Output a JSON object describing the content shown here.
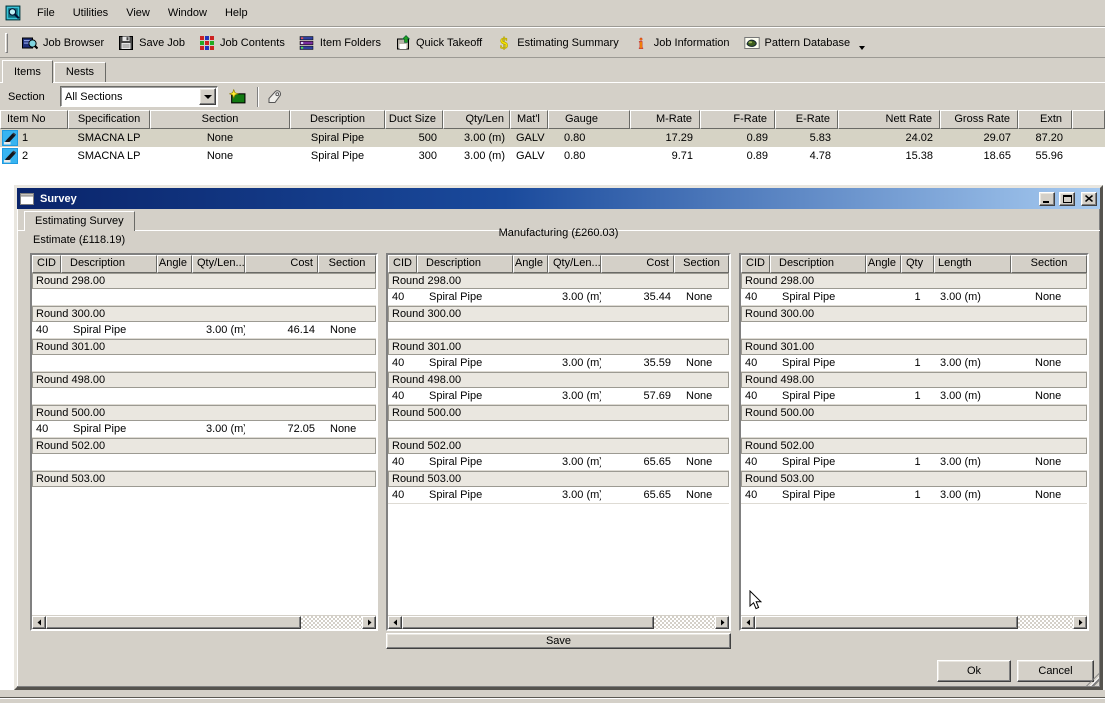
{
  "app": {
    "menu": [
      "File",
      "Utilities",
      "View",
      "Window",
      "Help"
    ]
  },
  "toolbar": [
    {
      "label": "Job Browser",
      "icon": "job-browser-icon"
    },
    {
      "label": "Save Job",
      "icon": "save-job-icon"
    },
    {
      "label": "Job Contents",
      "icon": "job-contents-icon"
    },
    {
      "label": "Item Folders",
      "icon": "item-folders-icon"
    },
    {
      "label": "Quick Takeoff",
      "icon": "quick-takeoff-icon"
    },
    {
      "label": "Estimating Summary",
      "icon": "estimating-summary-icon"
    },
    {
      "label": "Job Information",
      "icon": "job-information-icon"
    },
    {
      "label": "Pattern Database",
      "icon": "pattern-database-icon"
    }
  ],
  "tabs": [
    {
      "label": "Items",
      "active": true
    },
    {
      "label": "Nests",
      "active": false
    }
  ],
  "section_bar": {
    "label": "Section",
    "value": "All Sections"
  },
  "items_table": {
    "columns": [
      "Item No",
      "Specification",
      "Section",
      "Description",
      "Duct Size",
      "Qty/Len",
      "Mat'l",
      "Gauge",
      "M-Rate",
      "F-Rate",
      "E-Rate",
      "Nett Rate",
      "Gross Rate",
      "Extn"
    ],
    "rows": [
      {
        "selected": true,
        "cells": [
          "1",
          "SMACNA LP",
          "None",
          "Spiral Pipe",
          "500",
          "3.00 (m)",
          "GALV",
          "0.80",
          "17.29",
          "0.89",
          "5.83",
          "24.02",
          "29.07",
          "87.20"
        ]
      },
      {
        "selected": false,
        "cells": [
          "2",
          "SMACNA LP",
          "None",
          "Spiral Pipe",
          "300",
          "3.00 (m)",
          "GALV",
          "0.80",
          "9.71",
          "0.89",
          "4.78",
          "15.38",
          "18.65",
          "55.96"
        ]
      }
    ]
  },
  "dialog": {
    "title": "Survey",
    "tab_label": "Estimating Survey",
    "estimate_label": "Estimate (£118.19)",
    "manufacturing_label": "Manufacturing (£260.03)",
    "save_label": "Save",
    "ok_label": "Ok",
    "cancel_label": "Cancel",
    "panels": [
      {
        "name": "estimate",
        "columns": [
          "CID",
          "Description",
          "Angle",
          "Qty/Len...",
          "Cost",
          "Section"
        ],
        "rows": [
          {
            "type": "group",
            "label": "Round 298.00"
          },
          {
            "type": "empty"
          },
          {
            "type": "group",
            "label": "Round 300.00"
          },
          {
            "type": "item",
            "cells": [
              "40",
              "Spiral Pipe",
              "",
              "3.00 (m)",
              "46.14",
              "None"
            ]
          },
          {
            "type": "group",
            "label": "Round 301.00"
          },
          {
            "type": "empty"
          },
          {
            "type": "group",
            "label": "Round 498.00"
          },
          {
            "type": "empty"
          },
          {
            "type": "group",
            "label": "Round 500.00"
          },
          {
            "type": "item",
            "cells": [
              "40",
              "Spiral Pipe",
              "",
              "3.00 (m)",
              "72.05",
              "None"
            ]
          },
          {
            "type": "group",
            "label": "Round 502.00"
          },
          {
            "type": "empty"
          },
          {
            "type": "group",
            "label": "Round 503.00"
          }
        ]
      },
      {
        "name": "manufacturing",
        "columns": [
          "CID",
          "Description",
          "Angle",
          "Qty/Len...",
          "Cost",
          "Section"
        ],
        "rows": [
          {
            "type": "group",
            "label": "Round 298.00"
          },
          {
            "type": "item",
            "cells": [
              "40",
              "Spiral Pipe",
              "",
              "3.00 (m)",
              "35.44",
              "None"
            ]
          },
          {
            "type": "group",
            "label": "Round 300.00"
          },
          {
            "type": "empty"
          },
          {
            "type": "group",
            "label": "Round 301.00"
          },
          {
            "type": "item",
            "cells": [
              "40",
              "Spiral Pipe",
              "",
              "3.00 (m)",
              "35.59",
              "None"
            ]
          },
          {
            "type": "group",
            "label": "Round 498.00"
          },
          {
            "type": "item",
            "cells": [
              "40",
              "Spiral Pipe",
              "",
              "3.00 (m)",
              "57.69",
              "None"
            ]
          },
          {
            "type": "group",
            "label": "Round 500.00"
          },
          {
            "type": "empty"
          },
          {
            "type": "group",
            "label": "Round 502.00"
          },
          {
            "type": "item",
            "cells": [
              "40",
              "Spiral Pipe",
              "",
              "3.00 (m)",
              "65.65",
              "None"
            ]
          },
          {
            "type": "group",
            "label": "Round 503.00"
          },
          {
            "type": "item",
            "cells": [
              "40",
              "Spiral Pipe",
              "",
              "3.00 (m)",
              "65.65",
              "None"
            ]
          }
        ]
      },
      {
        "name": "quantities",
        "columns": [
          "CID",
          "Description",
          "Angle",
          "Qty",
          "Length",
          "Section"
        ],
        "rows": [
          {
            "type": "group",
            "label": "Round 298.00"
          },
          {
            "type": "item",
            "cells": [
              "40",
              "Spiral Pipe",
              "",
              "1",
              "3.00 (m)",
              "None"
            ]
          },
          {
            "type": "group",
            "label": "Round 300.00"
          },
          {
            "type": "empty"
          },
          {
            "type": "group",
            "label": "Round 301.00"
          },
          {
            "type": "item",
            "cells": [
              "40",
              "Spiral Pipe",
              "",
              "1",
              "3.00 (m)",
              "None"
            ]
          },
          {
            "type": "group",
            "label": "Round 498.00"
          },
          {
            "type": "item",
            "cells": [
              "40",
              "Spiral Pipe",
              "",
              "1",
              "3.00 (m)",
              "None"
            ]
          },
          {
            "type": "group",
            "label": "Round 500.00"
          },
          {
            "type": "empty"
          },
          {
            "type": "group",
            "label": "Round 502.00"
          },
          {
            "type": "item",
            "cells": [
              "40",
              "Spiral Pipe",
              "",
              "1",
              "3.00 (m)",
              "None"
            ]
          },
          {
            "type": "group",
            "label": "Round 503.00"
          },
          {
            "type": "item",
            "cells": [
              "40",
              "Spiral Pipe",
              "",
              "1",
              "3.00 (m)",
              "None"
            ]
          }
        ]
      }
    ]
  },
  "colors": {
    "window_face": "#d4d0c8",
    "titlebar_left": "#0a246a",
    "titlebar_right": "#a6caf0",
    "selected_row": "#d6d3c5",
    "group_row": "#eae7e0"
  }
}
